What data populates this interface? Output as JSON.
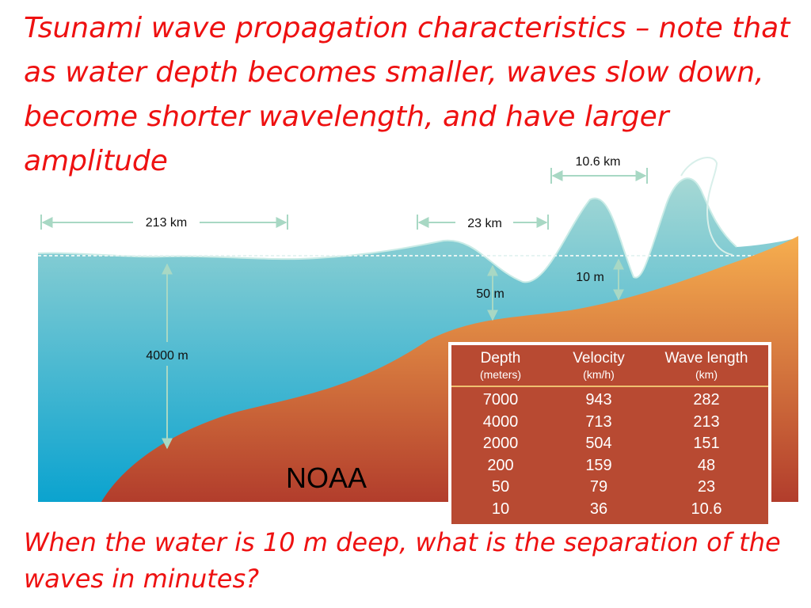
{
  "slide": {
    "title": "Tsunami wave propagation characteristics – note that as water depth becomes smaller, waves slow down, become shorter wavelength, and have larger amplitude",
    "question": "When the water is 10 m deep, what is the separation of the waves in minutes?",
    "credit": "NOAA"
  },
  "diagram": {
    "dimensions": {
      "wave_213": "213 km",
      "wave_23": "23 km",
      "wave_10_6": "10.6 km",
      "depth_4000": "4000 m",
      "depth_50": "50 m",
      "depth_10": "10 m"
    },
    "colors": {
      "water_top": "#a6d8d4",
      "water_bottom": "#0ba3cf",
      "land_top": "#f6ae4f",
      "land_bottom": "#b23d2c",
      "arrow": "#a8d8c4",
      "text_red": "#ee1111"
    }
  },
  "table": {
    "headers": [
      {
        "label": "Depth",
        "unit": "(meters)"
      },
      {
        "label": "Velocity",
        "unit": "(km/h)"
      },
      {
        "label": "Wave length",
        "unit": "(km)"
      }
    ],
    "rows": [
      [
        "7000",
        "943",
        "282"
      ],
      [
        "4000",
        "713",
        "213"
      ],
      [
        "2000",
        "504",
        "151"
      ],
      [
        "200",
        "159",
        "48"
      ],
      [
        "50",
        "79",
        "23"
      ],
      [
        "10",
        "36",
        "10.6"
      ]
    ]
  }
}
